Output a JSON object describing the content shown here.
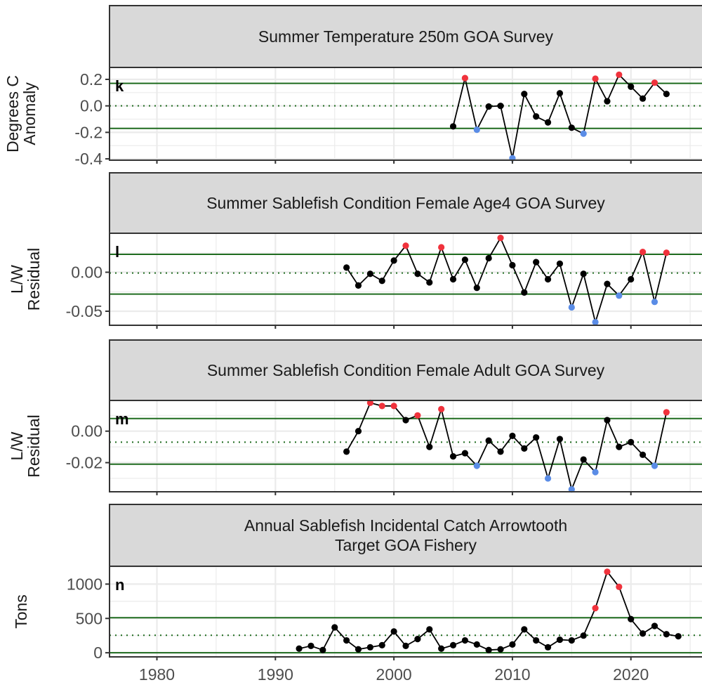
{
  "colors": {
    "line": "#000000",
    "point_normal": "#000000",
    "point_high": "#f0323c",
    "point_low": "#5a8ce6",
    "ref_solid": "#1e6b1e",
    "ref_dotted": "#1e6b1e",
    "strip_fill": "#d9d9d9",
    "grid": "#ebebeb"
  },
  "chart_data": [
    {
      "type": "line",
      "tag": "k",
      "title": "Summer Temperature 250m GOA Survey",
      "ylabel": [
        "Degrees C",
        "Anomaly"
      ],
      "xlim": [
        1976,
        2026
      ],
      "ylim": [
        -0.41,
        0.29
      ],
      "yticks": [
        -0.4,
        -0.2,
        0.0,
        0.2
      ],
      "ytick_labels": [
        "-0.4",
        "-0.2",
        "0.0",
        "0.2"
      ],
      "mean": 0.0,
      "upper": 0.17,
      "lower": -0.17,
      "x": [
        2005,
        2006,
        2007,
        2008,
        2009,
        2010,
        2011,
        2012,
        2013,
        2014,
        2015,
        2016,
        2017,
        2018,
        2019,
        2020,
        2021,
        2022,
        2023
      ],
      "y": [
        -0.155,
        0.21,
        -0.18,
        -0.005,
        0.0,
        -0.395,
        0.09,
        -0.08,
        -0.125,
        0.095,
        -0.165,
        -0.21,
        0.205,
        0.035,
        0.235,
        0.145,
        0.055,
        0.175,
        0.09
      ]
    },
    {
      "type": "line",
      "tag": "l",
      "title": "Summer Sablefish Condition Female Age4 GOA Survey",
      "ylabel": [
        "L/W",
        "Residual"
      ],
      "xlim": [
        1976,
        2026
      ],
      "ylim": [
        -0.068,
        0.05
      ],
      "yticks": [
        -0.05,
        0.0
      ],
      "ytick_labels": [
        "-0.05",
        "0.00"
      ],
      "mean": -0.001,
      "upper": 0.023,
      "lower": -0.028,
      "x": [
        1996,
        1997,
        1998,
        1999,
        2000,
        2001,
        2002,
        2003,
        2004,
        2005,
        2006,
        2007,
        2008,
        2009,
        2010,
        2011,
        2012,
        2013,
        2014,
        2015,
        2016,
        2017,
        2018,
        2019,
        2020,
        2021,
        2022,
        2023
      ],
      "y": [
        0.006,
        -0.017,
        -0.002,
        -0.011,
        0.015,
        0.034,
        -0.002,
        -0.013,
        0.032,
        -0.009,
        0.016,
        -0.02,
        0.018,
        0.044,
        0.009,
        -0.026,
        0.013,
        -0.009,
        0.011,
        -0.045,
        -0.002,
        -0.064,
        -0.015,
        -0.03,
        -0.009,
        0.026,
        -0.038,
        0.025
      ]
    },
    {
      "type": "line",
      "tag": "m",
      "title": "Summer Sablefish Condition Female Adult GOA Survey",
      "ylabel": [
        "L/W",
        "Residual"
      ],
      "xlim": [
        1976,
        2026
      ],
      "ylim": [
        -0.0385,
        0.0195
      ],
      "yticks": [
        -0.02,
        0.0
      ],
      "ytick_labels": [
        "-0.02",
        "0.00"
      ],
      "mean": -0.007,
      "upper": 0.008,
      "lower": -0.021,
      "x": [
        1996,
        1997,
        1998,
        1999,
        2000,
        2001,
        2002,
        2003,
        2004,
        2005,
        2006,
        2007,
        2008,
        2009,
        2010,
        2011,
        2012,
        2013,
        2014,
        2015,
        2016,
        2017,
        2018,
        2019,
        2020,
        2021,
        2022,
        2023
      ],
      "y": [
        -0.013,
        0.0,
        0.018,
        0.016,
        0.016,
        0.007,
        0.01,
        -0.01,
        0.014,
        -0.016,
        -0.014,
        -0.022,
        -0.006,
        -0.013,
        -0.003,
        -0.011,
        -0.004,
        -0.03,
        -0.005,
        -0.037,
        -0.018,
        -0.026,
        0.007,
        -0.01,
        -0.007,
        -0.015,
        -0.022,
        0.012
      ]
    },
    {
      "type": "line",
      "tag": "n",
      "title": [
        "Annual Sablefish Incidental Catch Arrowtooth",
        "Target GOA Fishery"
      ],
      "ylabel": [
        "Tons"
      ],
      "xlim": [
        1976,
        2026
      ],
      "ylim": [
        -60,
        1260
      ],
      "yticks": [
        0,
        500,
        1000
      ],
      "ytick_labels": [
        "0",
        "500",
        "1000"
      ],
      "mean": 255,
      "upper": 510,
      "lower": 0,
      "x": [
        1992,
        1993,
        1994,
        1995,
        1996,
        1997,
        1998,
        1999,
        2000,
        2001,
        2002,
        2003,
        2004,
        2005,
        2006,
        2007,
        2008,
        2009,
        2010,
        2011,
        2012,
        2013,
        2014,
        2015,
        2016,
        2017,
        2018,
        2019,
        2020,
        2021,
        2022,
        2023,
        2024
      ],
      "y": [
        60,
        100,
        40,
        370,
        180,
        50,
        80,
        110,
        310,
        100,
        200,
        340,
        60,
        110,
        180,
        120,
        40,
        50,
        120,
        340,
        180,
        80,
        190,
        180,
        250,
        650,
        1180,
        960,
        490,
        280,
        390,
        270,
        240
      ]
    }
  ],
  "x_axis": {
    "ticks": [
      1980,
      1990,
      2000,
      2010,
      2020
    ],
    "tick_labels": [
      "1980",
      "1990",
      "2000",
      "2010",
      "2020"
    ]
  }
}
